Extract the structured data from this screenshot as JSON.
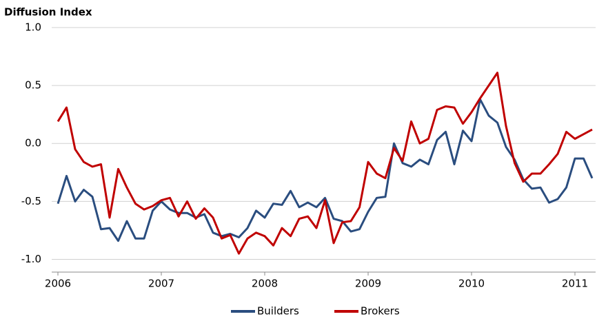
{
  "chart_data": {
    "type": "line",
    "title": "Diffusion Index",
    "x": [
      2006,
      2006.083,
      2006.167,
      2006.25,
      2006.333,
      2006.417,
      2006.5,
      2006.583,
      2006.667,
      2006.75,
      2006.833,
      2006.917,
      2007,
      2007.083,
      2007.167,
      2007.25,
      2007.333,
      2007.417,
      2007.5,
      2007.583,
      2007.667,
      2007.75,
      2007.833,
      2007.917,
      2008,
      2008.083,
      2008.167,
      2008.25,
      2008.333,
      2008.417,
      2008.5,
      2008.583,
      2008.667,
      2008.75,
      2008.833,
      2008.917,
      2009,
      2009.083,
      2009.167,
      2009.25,
      2009.333,
      2009.417,
      2009.5,
      2009.583,
      2009.667,
      2009.75,
      2009.833,
      2009.917,
      2010,
      2010.083,
      2010.167,
      2010.25,
      2010.333,
      2010.417,
      2010.5,
      2010.583,
      2010.667,
      2010.75,
      2010.833,
      2010.917,
      2011,
      2011.083,
      2011.167
    ],
    "series": [
      {
        "name": "Builders",
        "color": "#2a4d7f",
        "values": [
          -0.52,
          -0.28,
          -0.5,
          -0.4,
          -0.46,
          -0.74,
          -0.73,
          -0.84,
          -0.67,
          -0.82,
          -0.82,
          -0.58,
          -0.5,
          -0.57,
          -0.6,
          -0.6,
          -0.64,
          -0.61,
          -0.77,
          -0.8,
          -0.78,
          -0.81,
          -0.73,
          -0.58,
          -0.64,
          -0.52,
          -0.53,
          -0.41,
          -0.55,
          -0.51,
          -0.55,
          -0.47,
          -0.65,
          -0.67,
          -0.76,
          -0.74,
          -0.59,
          -0.47,
          -0.46,
          0.0,
          -0.17,
          -0.2,
          -0.14,
          -0.18,
          0.03,
          0.1,
          -0.18,
          0.11,
          0.02,
          0.38,
          0.24,
          0.18,
          -0.03,
          -0.14,
          -0.31,
          -0.39,
          -0.38,
          -0.51,
          -0.48,
          -0.38,
          -0.13,
          -0.13,
          -0.3
        ]
      },
      {
        "name": "Brokers",
        "color": "#c00000",
        "values": [
          0.19,
          0.31,
          -0.05,
          -0.16,
          -0.2,
          -0.18,
          -0.64,
          -0.22,
          -0.38,
          -0.52,
          -0.57,
          -0.54,
          -0.49,
          -0.47,
          -0.63,
          -0.5,
          -0.65,
          -0.56,
          -0.64,
          -0.82,
          -0.79,
          -0.95,
          -0.82,
          -0.77,
          -0.8,
          -0.88,
          -0.73,
          -0.8,
          -0.65,
          -0.63,
          -0.73,
          -0.49,
          -0.86,
          -0.68,
          -0.67,
          -0.55,
          -0.16,
          -0.26,
          -0.3,
          -0.04,
          -0.15,
          0.19,
          0.0,
          0.04,
          0.29,
          0.32,
          0.31,
          0.17,
          0.27,
          0.39,
          0.5,
          0.61,
          0.15,
          -0.17,
          -0.33,
          -0.26,
          -0.26,
          -0.18,
          -0.09,
          0.1,
          0.04,
          0.08,
          0.12
        ]
      }
    ],
    "xlim": [
      2005.94,
      2011.2
    ],
    "xticks": [
      2006,
      2007,
      2008,
      2009,
      2010,
      2011
    ],
    "ylim": [
      -1.11,
      1.0
    ],
    "yticks": [
      {
        "value": 1.0,
        "label": "1.0"
      },
      {
        "value": 0.5,
        "label": "0.5"
      },
      {
        "value": 0.0,
        "label": "0.0"
      },
      {
        "value": -0.5,
        "label": "-0.5"
      },
      {
        "value": -1.0,
        "label": "-1.0"
      }
    ],
    "grid": true,
    "legend": "bottom"
  }
}
